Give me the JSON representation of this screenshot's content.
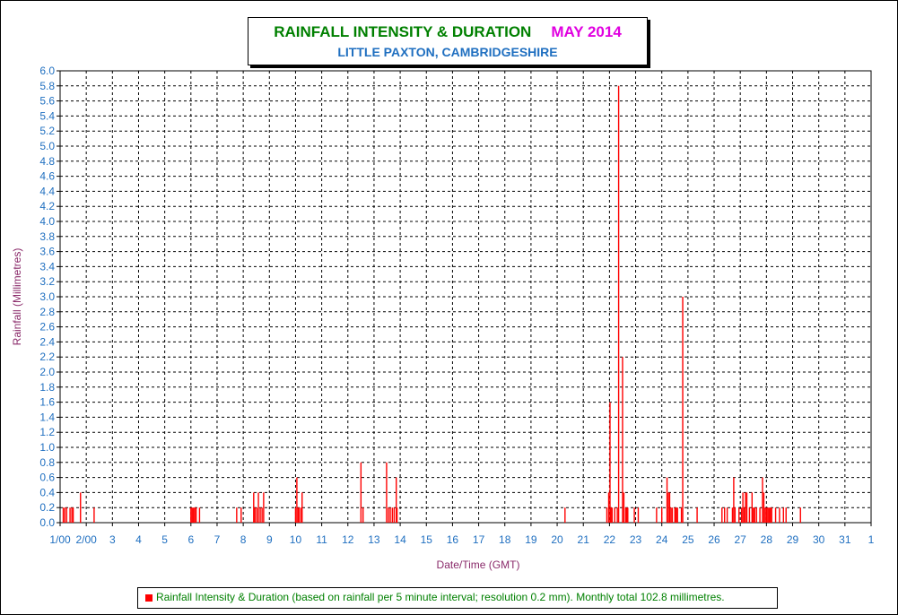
{
  "chart_data": {
    "type": "bar",
    "title": "RAINFALL INTENSITY & DURATION",
    "title_period": "MAY 2014",
    "subtitle": "LITTLE PAXTON, CAMBRIDGESHIRE",
    "xlabel": "Date/Time (GMT)",
    "ylabel": "Rainfall (Millimetres)",
    "ylim": [
      0,
      6.0
    ],
    "y_ticks": [
      "0.0",
      "0.2",
      "0.4",
      "0.6",
      "0.8",
      "1.0",
      "1.2",
      "1.4",
      "1.6",
      "1.8",
      "2.0",
      "2.2",
      "2.4",
      "2.6",
      "2.8",
      "3.0",
      "3.2",
      "3.4",
      "3.6",
      "3.8",
      "4.0",
      "4.2",
      "4.4",
      "4.6",
      "4.8",
      "5.0",
      "5.2",
      "5.4",
      "5.6",
      "5.8",
      "6.0"
    ],
    "x_ticks": [
      "1/00",
      "2/00",
      "3",
      "4",
      "5",
      "6",
      "7",
      "8",
      "9",
      "10",
      "11",
      "12",
      "13",
      "14",
      "15",
      "16",
      "17",
      "18",
      "19",
      "20",
      "21",
      "22",
      "23",
      "24",
      "25",
      "26",
      "27",
      "28",
      "29",
      "30",
      "31",
      "1"
    ],
    "x_unit": "day of May 2014 (1 = May 1 00:00)",
    "xlim": [
      1,
      32
    ],
    "grid": true,
    "legend_placement": "bottom",
    "series": [
      {
        "name": "Rainfall Intensity & Duration (based on rainfall per 5 minute interval; resolution 0.2 mm). Monthly total 102.8 millimetres.",
        "color": "#ff0000",
        "x": [
          1.12,
          1.18,
          1.25,
          1.38,
          1.45,
          1.5,
          1.78,
          2.3,
          6.0,
          6.05,
          6.1,
          6.15,
          6.2,
          6.33,
          7.75,
          7.92,
          8.4,
          8.45,
          8.52,
          8.58,
          8.65,
          8.72,
          8.78,
          10.0,
          10.05,
          10.1,
          10.15,
          10.22,
          10.25,
          12.5,
          12.58,
          13.48,
          13.55,
          13.62,
          13.7,
          13.77,
          13.85,
          13.88,
          20.3,
          21.9,
          21.97,
          22.02,
          22.06,
          22.1,
          22.2,
          22.3,
          22.35,
          22.5,
          22.55,
          22.62,
          22.66,
          22.7,
          22.95,
          23.1,
          23.8,
          24.0,
          24.2,
          24.25,
          24.3,
          24.35,
          24.4,
          24.5,
          24.55,
          24.6,
          24.75,
          24.8,
          25.35,
          26.3,
          26.4,
          26.5,
          26.7,
          26.75,
          26.8,
          26.95,
          27.05,
          27.1,
          27.15,
          27.2,
          27.25,
          27.35,
          27.45,
          27.5,
          27.55,
          27.62,
          27.75,
          27.85,
          27.9,
          27.95,
          28.0,
          28.05,
          28.1,
          28.15,
          28.2,
          28.35,
          28.5,
          28.65,
          28.75,
          29.3
        ],
        "values": [
          0.2,
          0.2,
          0.2,
          0.2,
          0.2,
          0.2,
          0.4,
          0.2,
          0.2,
          0.2,
          0.2,
          0.2,
          0.2,
          0.2,
          0.2,
          0.2,
          0.4,
          0.2,
          0.2,
          0.4,
          0.2,
          0.2,
          0.4,
          0.2,
          0.6,
          0.2,
          0.2,
          0.2,
          0.4,
          0.8,
          0.2,
          0.8,
          0.2,
          0.2,
          0.2,
          0.2,
          0.6,
          0.2,
          0.2,
          0.2,
          0.4,
          1.6,
          0.2,
          0.2,
          0.2,
          0.2,
          5.8,
          2.2,
          0.4,
          0.2,
          0.2,
          0.2,
          0.2,
          0.2,
          0.2,
          0.2,
          0.6,
          0.4,
          0.4,
          0.2,
          0.2,
          0.2,
          0.2,
          0.2,
          0.2,
          3.0,
          0.2,
          0.2,
          0.2,
          0.2,
          0.2,
          0.6,
          0.2,
          0.2,
          0.2,
          0.4,
          0.2,
          0.4,
          0.4,
          0.2,
          0.4,
          0.2,
          0.2,
          0.2,
          0.2,
          0.6,
          0.4,
          0.2,
          0.2,
          0.2,
          0.2,
          0.2,
          0.2,
          0.2,
          0.2,
          0.2,
          0.2,
          0.2
        ]
      }
    ]
  }
}
